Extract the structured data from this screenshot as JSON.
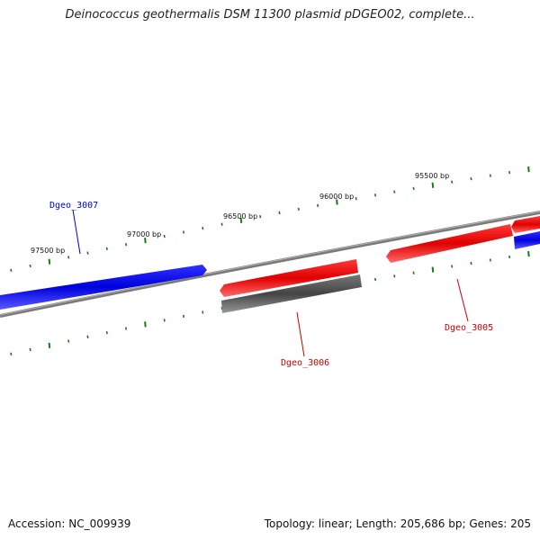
{
  "title": "Deinococcus geothermalis DSM 11300 plasmid pDGEO02, complete...",
  "footer": {
    "accession": "Accession: NC_009939",
    "summary": "Topology: linear; Length: 205,686 bp; Genes: 205"
  },
  "colors": {
    "forward_strand": "#0000e6",
    "reverse_strand": "#e60000",
    "pseudo_gene": "#555555",
    "backbone": "#808080",
    "ticks": "#1a7a1a"
  },
  "ticks": [
    {
      "label": "97500 bp"
    },
    {
      "label": "97000 bp"
    },
    {
      "label": "96500 bp"
    },
    {
      "label": "96000 bp"
    },
    {
      "label": "95500 bp"
    }
  ],
  "genes": [
    {
      "name": "Dgeo_3007",
      "strand": "forward",
      "color": "#0000cc"
    },
    {
      "name": "Dgeo_3006",
      "strand": "reverse",
      "color": "#cc0000"
    },
    {
      "name": "Dgeo_3005",
      "strand": "reverse",
      "color": "#cc0000"
    }
  ]
}
